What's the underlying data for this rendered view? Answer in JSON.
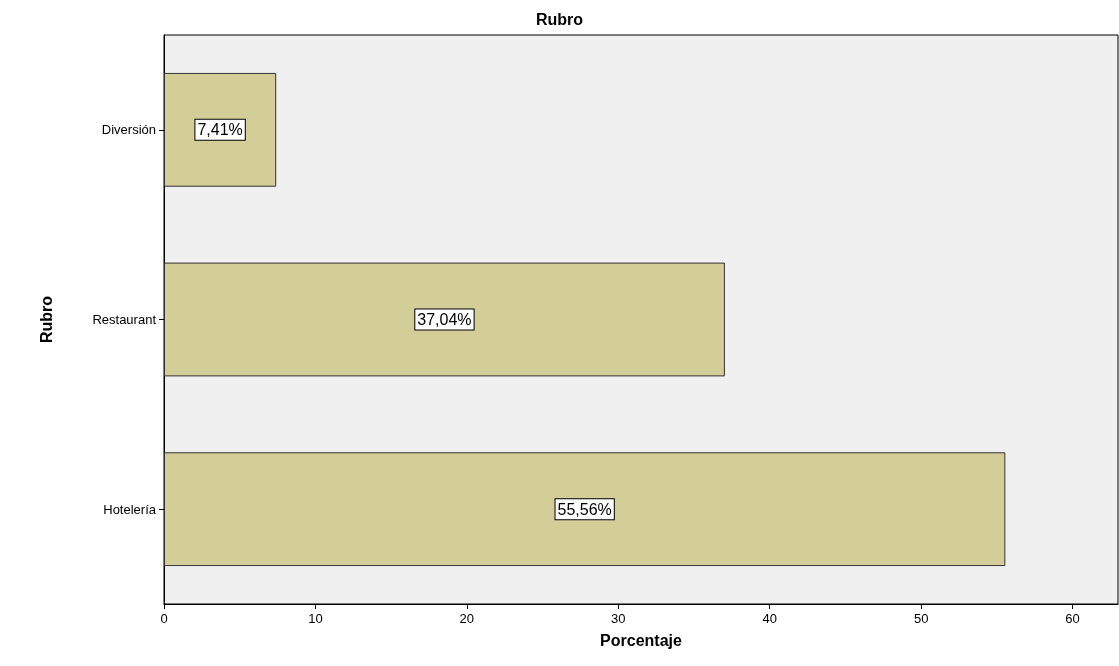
{
  "chart_data": {
    "type": "bar",
    "orientation": "horizontal",
    "title": "Rubro",
    "xlabel": "Porcentaje",
    "ylabel": "Rubro",
    "categories": [
      "Diversión",
      "Restaurant",
      "Hotelería"
    ],
    "values": [
      7.41,
      37.04,
      55.56
    ],
    "value_labels": [
      "7,41%",
      "37,04%",
      "55,56%"
    ],
    "color": "#d3ce97",
    "xlim": [
      0,
      63
    ],
    "xticks": [
      0,
      10,
      20,
      30,
      40,
      50,
      60
    ],
    "grid": false
  }
}
